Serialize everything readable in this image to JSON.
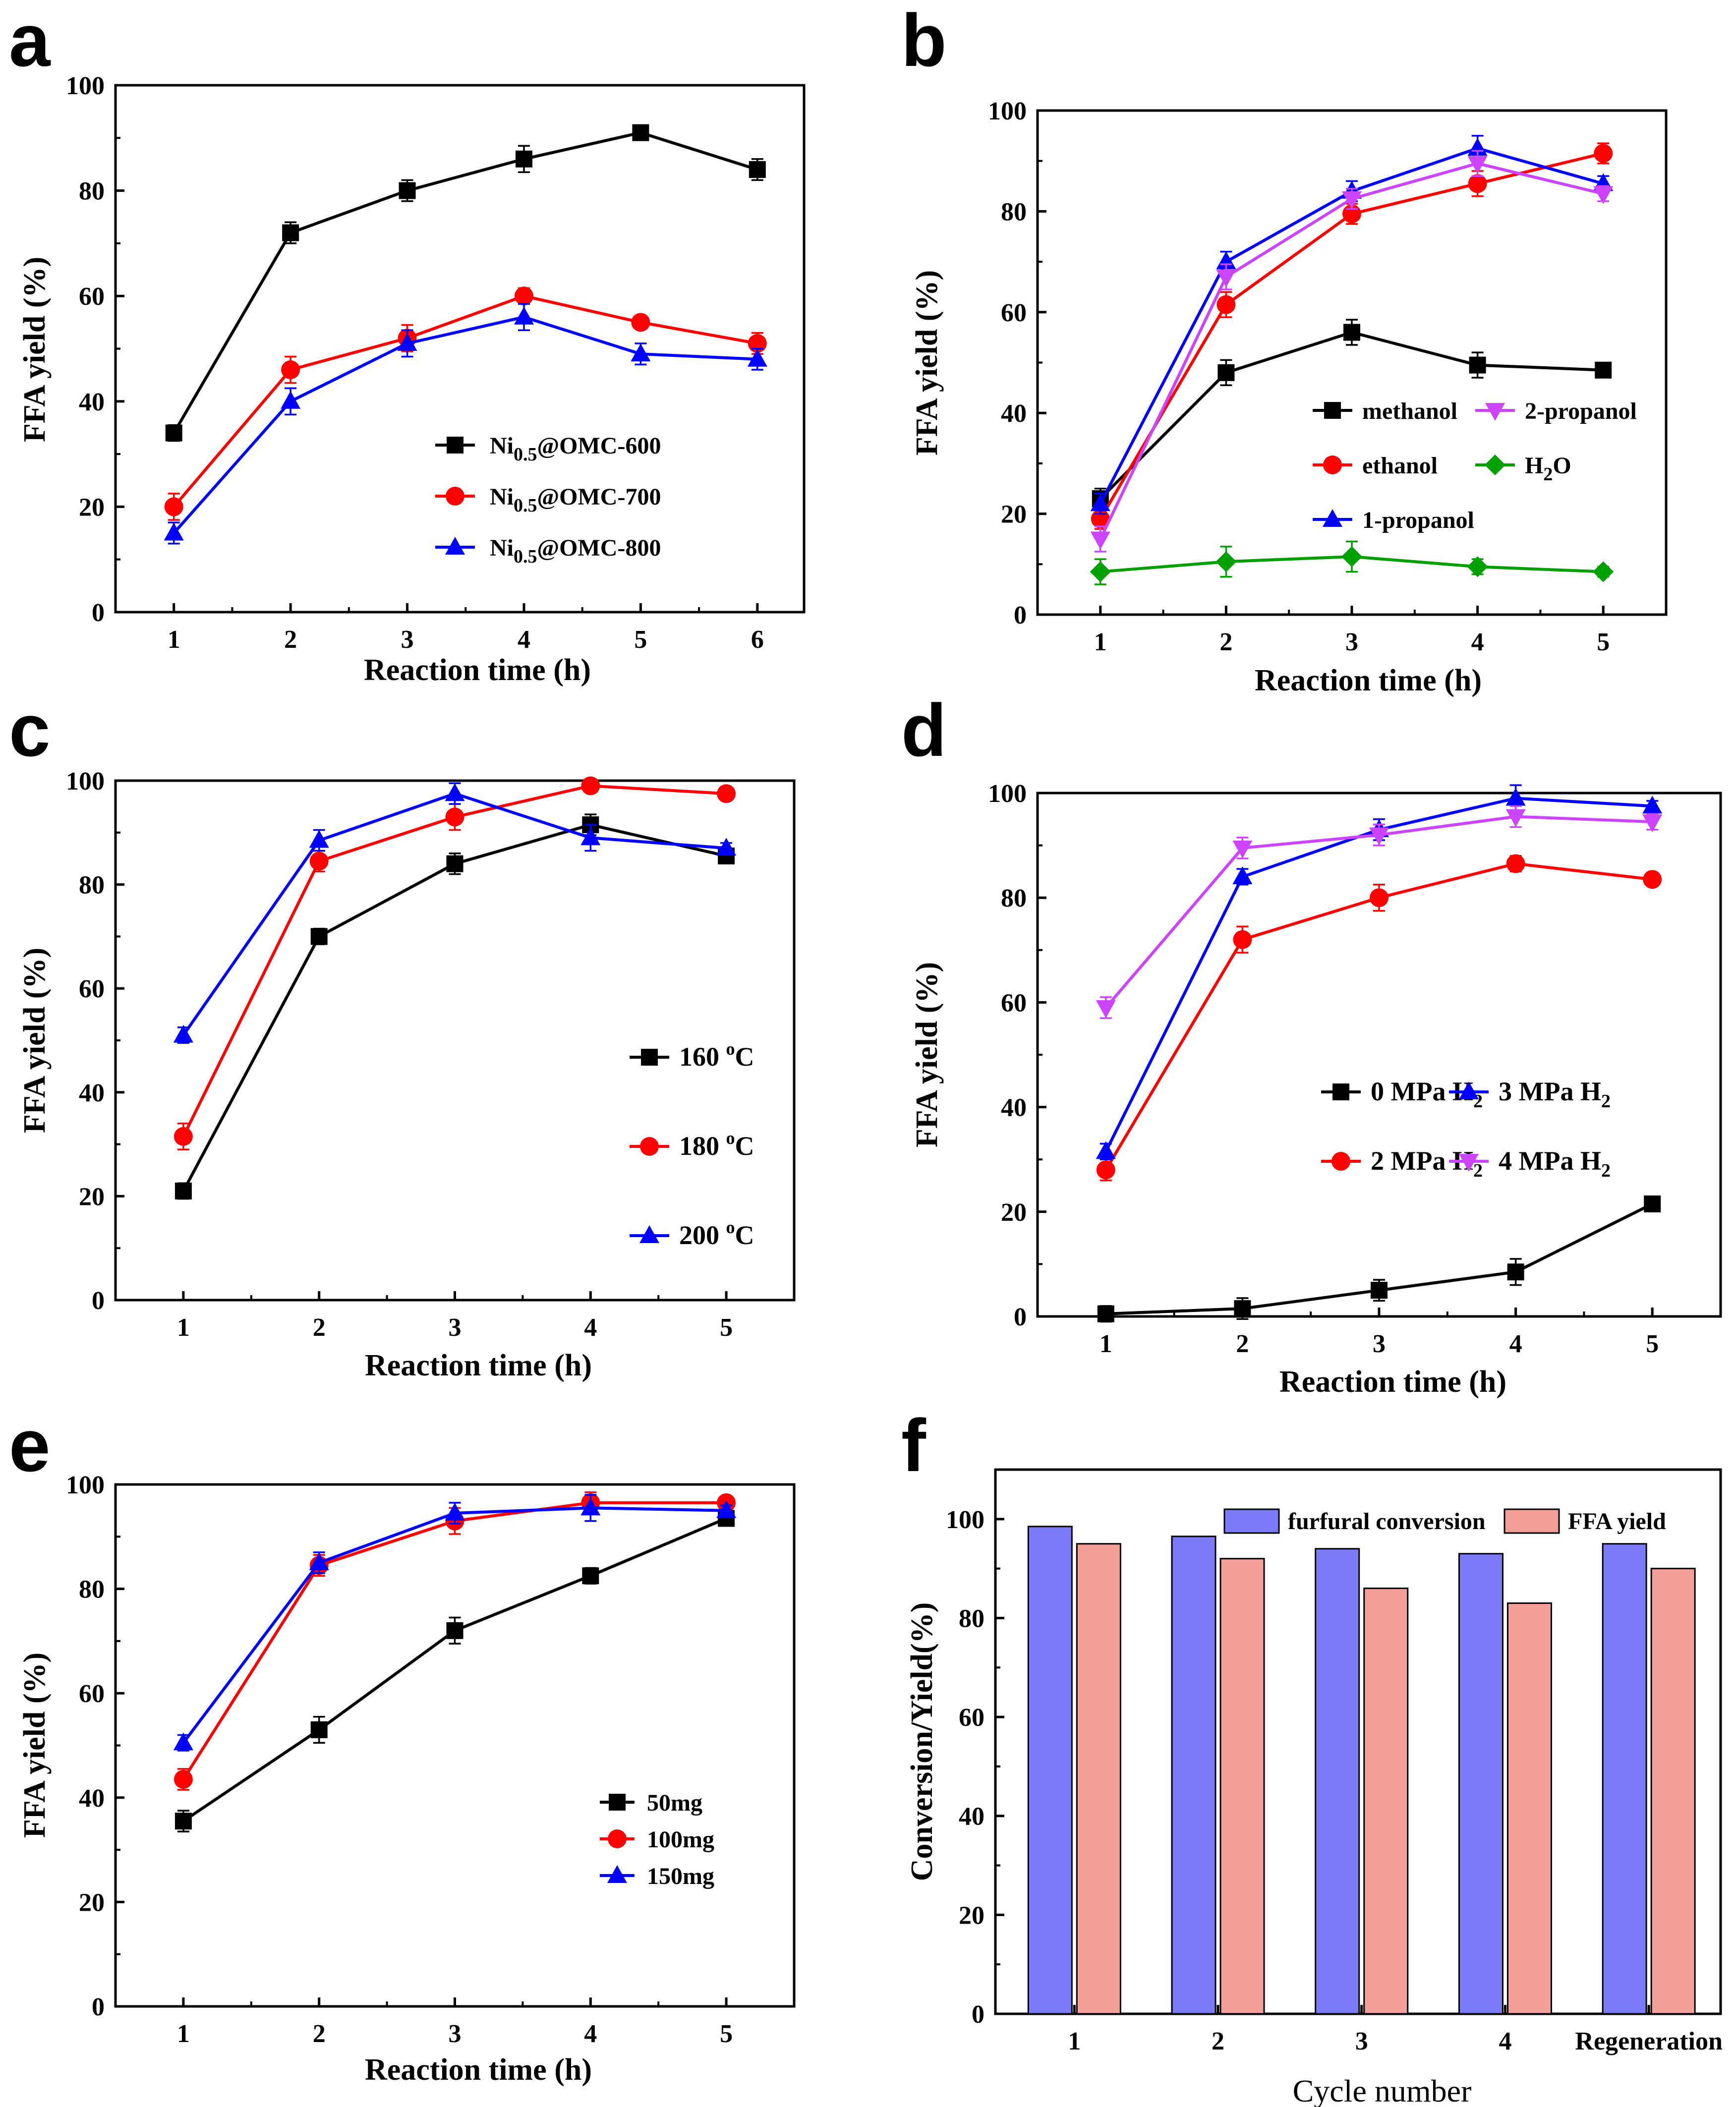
{
  "figure": {
    "domain": "Chart"
  },
  "chart_data": [
    {
      "id": "a",
      "panel": "a",
      "type": "line",
      "xlabel": "Reaction time (h)",
      "ylabel": "FFA yield (%)",
      "x": [
        1,
        2,
        3,
        4,
        5,
        6
      ],
      "xticks": [
        "1",
        "2",
        "3",
        "4",
        "5",
        "6"
      ],
      "xlim": [
        0.5,
        6.4
      ],
      "ylim": [
        0,
        100
      ],
      "yticks": [
        "0",
        "20",
        "40",
        "60",
        "80",
        "100"
      ],
      "legend_position": "center-right",
      "series": [
        {
          "name": "Ni0.5@OMC-600",
          "name_base": "Ni",
          "name_sub": "0.5",
          "name_rest": "@OMC-600",
          "color": "#000000",
          "marker": "square",
          "values": [
            34,
            72,
            80,
            86,
            91,
            84
          ],
          "errors": [
            1.5,
            2,
            2,
            2.5,
            0.8,
            2
          ]
        },
        {
          "name": "Ni0.5@OMC-700",
          "name_base": "Ni",
          "name_sub": "0.5",
          "name_rest": "@OMC-700",
          "color": "#ff0000",
          "marker": "circle",
          "values": [
            20,
            46,
            52,
            60,
            55,
            51
          ],
          "errors": [
            2.5,
            2.5,
            2.5,
            1.5,
            1.2,
            2
          ]
        },
        {
          "name": "Ni0.5@OMC-800",
          "name_base": "Ni",
          "name_sub": "0.5",
          "name_rest": "@OMC-800",
          "color": "#0000ff",
          "marker": "triangle-up",
          "values": [
            15,
            40,
            51,
            56,
            49,
            48
          ],
          "errors": [
            2,
            2.5,
            2.5,
            2.5,
            2,
            2
          ]
        }
      ]
    },
    {
      "id": "b",
      "panel": "b",
      "type": "line",
      "xlabel": "Reaction time (h)",
      "ylabel": "FFA yield (%)",
      "x": [
        1,
        2,
        3,
        4,
        5
      ],
      "xticks": [
        "1",
        "2",
        "3",
        "4",
        "5"
      ],
      "xlim": [
        0.5,
        5.5
      ],
      "ylim": [
        0,
        100
      ],
      "yticks": [
        "0",
        "20",
        "40",
        "60",
        "80",
        "100"
      ],
      "legend_position": "center-right",
      "series": [
        {
          "name": "methanol",
          "name_base": "methanol",
          "name_sub": "",
          "name_rest": "",
          "color": "#000000",
          "marker": "square",
          "values": [
            23,
            48,
            56,
            49.5,
            48.5
          ],
          "errors": [
            2,
            2.5,
            2.5,
            2.5,
            1
          ]
        },
        {
          "name": "ethanol",
          "name_base": "ethanol",
          "name_sub": "",
          "name_rest": "",
          "color": "#ff0000",
          "marker": "circle",
          "values": [
            19,
            61.5,
            79.5,
            85.5,
            91.5
          ],
          "errors": [
            2,
            2.5,
            2,
            2.5,
            2
          ]
        },
        {
          "name": "1-propanol",
          "name_base": "1-propanol",
          "name_sub": "",
          "name_rest": "",
          "color": "#0000ff",
          "marker": "triangle-up",
          "values": [
            22,
            70,
            84,
            92.5,
            85.5
          ],
          "errors": [
            2,
            2,
            2,
            2.5,
            1.5
          ]
        },
        {
          "name": "2-propanol",
          "name_base": "2-propanol",
          "name_sub": "",
          "name_rest": "",
          "color": "#cc44ff",
          "marker": "triangle-down",
          "values": [
            15,
            67,
            82.5,
            89.5,
            83.5
          ],
          "errors": [
            2.5,
            2.5,
            2,
            2.5,
            1.5
          ]
        },
        {
          "name": "H2O",
          "name_base": "H",
          "name_sub": "2",
          "name_rest": "O",
          "color": "#00a000",
          "marker": "diamond",
          "values": [
            8.5,
            10.5,
            11.5,
            9.5,
            8.5
          ],
          "errors": [
            2.5,
            3,
            3,
            1.5,
            1
          ]
        }
      ]
    },
    {
      "id": "c",
      "panel": "c",
      "type": "line",
      "xlabel": "Reaction time (h)",
      "ylabel": "FFA yield (%)",
      "x": [
        1,
        2,
        3,
        4,
        5
      ],
      "xticks": [
        "1",
        "2",
        "3",
        "4",
        "5"
      ],
      "xlim": [
        0.5,
        5.5
      ],
      "ylim": [
        0,
        100
      ],
      "yticks": [
        "0",
        "20",
        "40",
        "60",
        "80",
        "100"
      ],
      "legend_position": "center-right",
      "series": [
        {
          "name": "160 °C",
          "name_base": "160 ",
          "name_sup": "o",
          "name_rest": "C",
          "color": "#000000",
          "marker": "square",
          "values": [
            21,
            70,
            84,
            91.5,
            85.5
          ],
          "errors": [
            1.5,
            1.5,
            2,
            2,
            1
          ]
        },
        {
          "name": "180 °C",
          "name_base": "180 ",
          "name_sup": "o",
          "name_rest": "C",
          "color": "#ff0000",
          "marker": "circle",
          "values": [
            31.5,
            84.5,
            93,
            99,
            97.5
          ],
          "errors": [
            2.5,
            2,
            2.5,
            1,
            0.8
          ]
        },
        {
          "name": "200 °C",
          "name_base": "200 ",
          "name_sup": "o",
          "name_rest": "C",
          "color": "#0000ff",
          "marker": "triangle-up",
          "values": [
            51,
            88.5,
            97.5,
            89,
            87
          ],
          "errors": [
            1.5,
            2,
            2,
            2.5,
            1
          ]
        }
      ]
    },
    {
      "id": "d",
      "panel": "d",
      "type": "line",
      "xlabel": "Reaction time (h)",
      "ylabel": "FFA yield (%)",
      "x": [
        1,
        2,
        3,
        4,
        5
      ],
      "xticks": [
        "1",
        "2",
        "3",
        "4",
        "5"
      ],
      "xlim": [
        0.5,
        5.5
      ],
      "ylim": [
        0,
        100
      ],
      "yticks": [
        "0",
        "20",
        "40",
        "60",
        "80",
        "100"
      ],
      "legend_position": "center-right",
      "series": [
        {
          "name": "0 MPa H2",
          "name_base": "0 MPa H",
          "name_sub": "2",
          "name_rest": "",
          "color": "#000000",
          "marker": "square",
          "values": [
            0.5,
            1.5,
            5,
            8.5,
            21.5
          ],
          "errors": [
            1.5,
            2,
            2,
            2.5,
            1
          ]
        },
        {
          "name": "2 MPa H2",
          "name_base": "2 MPa H",
          "name_sub": "2",
          "name_rest": "",
          "color": "#ff0000",
          "marker": "circle",
          "values": [
            28,
            72,
            80,
            86.5,
            83.5
          ],
          "errors": [
            2,
            2.5,
            2.5,
            1.5,
            1
          ]
        },
        {
          "name": "3 MPa H2",
          "name_base": "3 MPa H",
          "name_sub": "2",
          "name_rest": "",
          "color": "#0000ff",
          "marker": "triangle-up",
          "values": [
            31.5,
            84,
            93,
            99,
            97.5
          ],
          "errors": [
            1.5,
            1.5,
            2,
            2.5,
            1
          ]
        },
        {
          "name": "4 MPa H2",
          "name_base": "4 MPa H",
          "name_sub": "2",
          "name_rest": "",
          "color": "#cc44ff",
          "marker": "triangle-down",
          "values": [
            59,
            89.5,
            92,
            95.5,
            94.5
          ],
          "errors": [
            2,
            2,
            2,
            2,
            1.5
          ]
        }
      ]
    },
    {
      "id": "e",
      "panel": "e",
      "type": "line",
      "xlabel": "Reaction time (h)",
      "ylabel": "FFA yield (%)",
      "x": [
        1,
        2,
        3,
        4,
        5
      ],
      "xticks": [
        "1",
        "2",
        "3",
        "4",
        "5"
      ],
      "xlim": [
        0.5,
        5.5
      ],
      "ylim": [
        0,
        100
      ],
      "yticks": [
        "0",
        "20",
        "40",
        "60",
        "80",
        "100"
      ],
      "legend_position": "lower-right",
      "series": [
        {
          "name": "50mg",
          "name_base": "50mg",
          "name_sub": "",
          "name_rest": "",
          "color": "#000000",
          "marker": "square",
          "values": [
            35.5,
            53,
            72,
            82.5,
            93.5
          ],
          "errors": [
            2,
            2.5,
            2.5,
            1.5,
            1
          ]
        },
        {
          "name": "100mg",
          "name_base": "100mg",
          "name_sub": "",
          "name_rest": "",
          "color": "#ff0000",
          "marker": "circle",
          "values": [
            43.5,
            84.5,
            93,
            96.5,
            96.5
          ],
          "errors": [
            2,
            2,
            2.5,
            2,
            1
          ]
        },
        {
          "name": "150mg",
          "name_base": "150mg",
          "name_sub": "",
          "name_rest": "",
          "color": "#0000ff",
          "marker": "triangle-up",
          "values": [
            50.5,
            85,
            94.5,
            95.5,
            95
          ],
          "errors": [
            1.5,
            2,
            2,
            2.5,
            1
          ]
        }
      ]
    },
    {
      "id": "f",
      "panel": "f",
      "type": "bar",
      "xlabel": "Cycle number",
      "ylabel": "Conversion/Yield(%)",
      "categories": [
        "1",
        "2",
        "3",
        "4",
        "Regeneration"
      ],
      "ylim": [
        0,
        110
      ],
      "yticks": [
        "0",
        "20",
        "40",
        "60",
        "80",
        "100"
      ],
      "legend_position": "top",
      "series": [
        {
          "name": "furfural conversion",
          "color": "#7b7bf7",
          "values": [
            98.5,
            96.5,
            94,
            93,
            95
          ]
        },
        {
          "name": "FFA yield",
          "color": "#f4a09a",
          "values": [
            95,
            92,
            86,
            83,
            90
          ]
        }
      ]
    }
  ]
}
